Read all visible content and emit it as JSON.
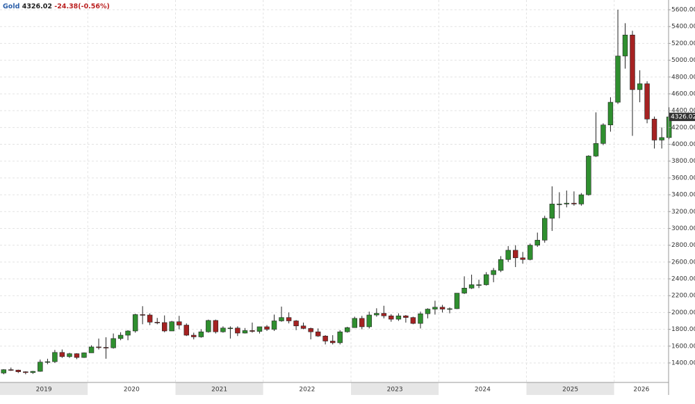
{
  "chart_data": {
    "type": "candlestick",
    "symbol": "Gold",
    "change_label": "-24.38(-0.56%)",
    "up_color": "#2f8f2f",
    "down_color": "#a52222",
    "grid": true,
    "ylim": [
      1168,
      5716
    ],
    "xlim": [
      2019.0,
      2026.62
    ],
    "xticks": [
      2019,
      2020,
      2021,
      2022,
      2023,
      2024,
      2025,
      2026
    ],
    "yticks": [
      {
        "value": 1400,
        "label": "1400.00"
      },
      {
        "value": 1600,
        "label": "1600.00"
      },
      {
        "value": 1800,
        "label": "1800.00"
      },
      {
        "value": 2000,
        "label": "2000.00"
      },
      {
        "value": 2200,
        "label": "2200.00"
      },
      {
        "value": 2400,
        "label": "2400.00"
      },
      {
        "value": 2600,
        "label": "2600.00"
      },
      {
        "value": 2800,
        "label": "2800.00"
      },
      {
        "value": 3000,
        "label": "3000.00"
      },
      {
        "value": 3200,
        "label": "3200.00"
      },
      {
        "value": 3400,
        "label": "3400.00"
      },
      {
        "value": 3600,
        "label": "3600.00"
      },
      {
        "value": 3800,
        "label": "3800.00"
      },
      {
        "value": 4000,
        "label": "4000.00"
      },
      {
        "value": 4200,
        "label": "4200.00"
      },
      {
        "value": 4400,
        "label": "4400.00"
      },
      {
        "value": 4600,
        "label": "4600.00"
      },
      {
        "value": 4800,
        "label": "4800.00"
      },
      {
        "value": 5000,
        "label": "5000.00"
      },
      {
        "value": 5200,
        "label": "5200.00"
      },
      {
        "value": 5400,
        "label": "5400.00"
      },
      {
        "value": 5600,
        "label": "5600.00"
      }
    ],
    "x": [
      2019.042,
      2019.125,
      2019.208,
      2019.292,
      2019.375,
      2019.458,
      2019.542,
      2019.625,
      2019.708,
      2019.792,
      2019.875,
      2019.958,
      2020.042,
      2020.125,
      2020.208,
      2020.292,
      2020.375,
      2020.458,
      2020.542,
      2020.625,
      2020.708,
      2020.792,
      2020.875,
      2020.958,
      2021.042,
      2021.125,
      2021.208,
      2021.292,
      2021.375,
      2021.458,
      2021.542,
      2021.625,
      2021.708,
      2021.792,
      2021.875,
      2021.958,
      2022.042,
      2022.125,
      2022.208,
      2022.292,
      2022.375,
      2022.458,
      2022.542,
      2022.625,
      2022.708,
      2022.792,
      2022.875,
      2022.958,
      2023.042,
      2023.125,
      2023.208,
      2023.292,
      2023.375,
      2023.458,
      2023.542,
      2023.625,
      2023.708,
      2023.792,
      2023.875,
      2023.958,
      2024.042,
      2024.125,
      2024.208,
      2024.292,
      2024.375,
      2024.458,
      2024.542,
      2024.625,
      2024.708,
      2024.792,
      2024.875,
      2024.958,
      2025.042,
      2025.125,
      2025.208,
      2025.292,
      2025.375,
      2025.458,
      2025.542,
      2025.625,
      2025.708,
      2025.792,
      2025.875,
      2025.958,
      2026.042,
      2026.125,
      2026.208,
      2026.292,
      2026.375,
      2026.458,
      2026.542,
      2026.625
    ],
    "open": [
      1280,
      1320,
      1315,
      1295,
      1285,
      1300,
      1410,
      1415,
      1525,
      1475,
      1510,
      1465,
      1520,
      1590,
      1585,
      1580,
      1690,
      1730,
      1780,
      1975,
      1970,
      1885,
      1880,
      1780,
      1890,
      1850,
      1730,
      1710,
      1770,
      1905,
      1770,
      1815,
      1815,
      1755,
      1785,
      1775,
      1830,
      1800,
      1900,
      1940,
      1900,
      1840,
      1810,
      1770,
      1720,
      1660,
      1640,
      1770,
      1820,
      1930,
      1830,
      1970,
      1990,
      1960,
      1920,
      1960,
      1940,
      1870,
      1985,
      2040,
      2063,
      2040,
      2045,
      2230,
      2290,
      2330,
      2330,
      2450,
      2500,
      2630,
      2740,
      2650,
      2630,
      2800,
      2860,
      3120,
      3290,
      3290,
      3300,
      3290,
      3400,
      3860,
      4010,
      4230,
      4500,
      5050,
      5300,
      4650,
      4720,
      4300,
      4050,
      4080
    ],
    "high": [
      1325,
      1345,
      1320,
      1300,
      1305,
      1440,
      1450,
      1555,
      1560,
      1520,
      1515,
      1525,
      1610,
      1690,
      1705,
      1750,
      1765,
      1790,
      1985,
      2075,
      1990,
      1935,
      1965,
      1900,
      1960,
      1870,
      1760,
      1800,
      1915,
      1915,
      1835,
      1835,
      1835,
      1815,
      1880,
      1830,
      1850,
      1975,
      2070,
      2000,
      1910,
      1880,
      1820,
      1810,
      1730,
      1730,
      1790,
      1830,
      1950,
      1960,
      2010,
      2050,
      2080,
      1980,
      1990,
      1970,
      1950,
      2010,
      2050,
      2140,
      2090,
      2060,
      2230,
      2430,
      2450,
      2390,
      2480,
      2530,
      2670,
      2790,
      2800,
      2720,
      2820,
      2950,
      3150,
      3500,
      3430,
      3450,
      3440,
      3420,
      3870,
      4380,
      4250,
      4560,
      5600,
      5440,
      5350,
      4880,
      4750,
      4330,
      4200,
      4440
    ],
    "low": [
      1265,
      1305,
      1280,
      1265,
      1270,
      1295,
      1385,
      1400,
      1460,
      1460,
      1445,
      1460,
      1520,
      1560,
      1450,
      1570,
      1670,
      1670,
      1760,
      1860,
      1850,
      1860,
      1765,
      1780,
      1800,
      1720,
      1680,
      1700,
      1760,
      1750,
      1760,
      1690,
      1720,
      1750,
      1760,
      1750,
      1780,
      1780,
      1890,
      1870,
      1790,
      1800,
      1680,
      1710,
      1620,
      1620,
      1620,
      1760,
      1820,
      1800,
      1810,
      1950,
      1930,
      1890,
      1900,
      1880,
      1860,
      1810,
      1930,
      1975,
      2000,
      1990,
      2040,
      2220,
      2280,
      2290,
      2320,
      2360,
      2480,
      2600,
      2540,
      2580,
      2620,
      2780,
      2830,
      2970,
      3120,
      3250,
      3270,
      3270,
      3390,
      3850,
      3990,
      4150,
      4480,
      4900,
      4100,
      4500,
      4250,
      3950,
      3950,
      4060
    ],
    "close": [
      1320,
      1315,
      1295,
      1285,
      1300,
      1410,
      1415,
      1525,
      1475,
      1510,
      1465,
      1520,
      1590,
      1585,
      1580,
      1690,
      1730,
      1780,
      1975,
      1970,
      1885,
      1880,
      1780,
      1890,
      1850,
      1730,
      1710,
      1770,
      1905,
      1770,
      1815,
      1815,
      1755,
      1785,
      1775,
      1830,
      1800,
      1900,
      1940,
      1900,
      1840,
      1810,
      1770,
      1720,
      1660,
      1640,
      1770,
      1820,
      1930,
      1830,
      1970,
      1990,
      1960,
      1920,
      1960,
      1940,
      1870,
      1985,
      2040,
      2063,
      2040,
      2045,
      2230,
      2290,
      2330,
      2330,
      2450,
      2500,
      2630,
      2740,
      2650,
      2630,
      2800,
      2860,
      3120,
      3290,
      3290,
      3300,
      3290,
      3400,
      3860,
      4010,
      4230,
      4500,
      5050,
      5300,
      4650,
      4720,
      4300,
      4050,
      4080,
      4326.02
    ]
  }
}
